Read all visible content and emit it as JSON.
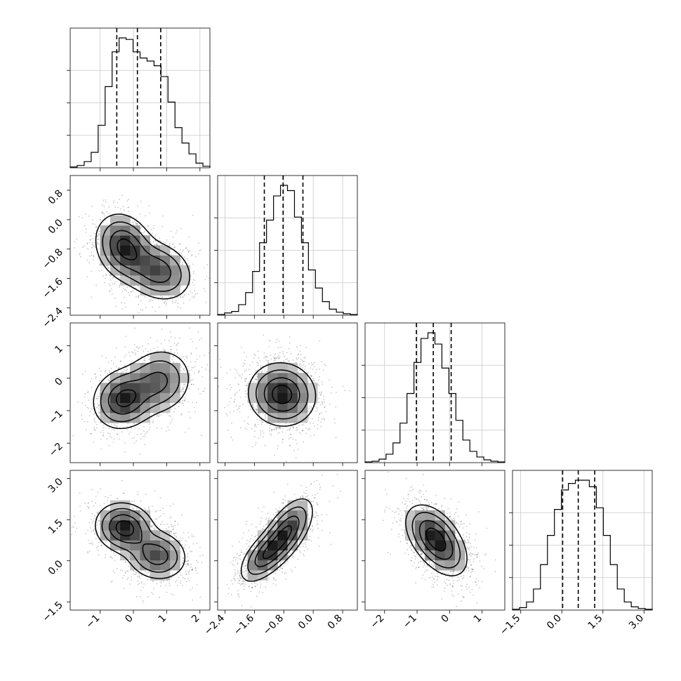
{
  "chart_data": {
    "type": "corner",
    "title": "",
    "parameters": [
      {
        "name": "",
        "range": [
          -1.9,
          2.3
        ],
        "ticks": [
          -1,
          0,
          1,
          2
        ],
        "tick_labels": [
          "−1",
          "0",
          "1",
          "2"
        ]
      },
      {
        "name": "",
        "range": [
          -2.6,
          1.2
        ],
        "ticks": [
          -2.4,
          -1.6,
          -0.8,
          0.0,
          0.8
        ],
        "tick_labels": [
          "−2.4",
          "−1.6",
          "−0.8",
          "0.0",
          "0.8"
        ]
      },
      {
        "name": "",
        "range": [
          -2.6,
          1.7
        ],
        "ticks": [
          -2,
          -1,
          0,
          1
        ],
        "tick_labels": [
          "−2",
          "−1",
          "0",
          "1"
        ]
      },
      {
        "name": "",
        "range": [
          -1.8,
          3.3
        ],
        "ticks": [
          -1.5,
          0.0,
          1.5,
          3.0
        ],
        "tick_labels": [
          "−1.5",
          "0.0",
          "1.5",
          "3.0"
        ]
      }
    ],
    "quantiles": [
      [
        -0.5,
        0.12,
        0.82
      ],
      [
        -1.33,
        -0.82,
        -0.28
      ],
      [
        -1.02,
        -0.5,
        0.05
      ],
      [
        0.03,
        0.6,
        1.2
      ]
    ],
    "histograms": [
      {
        "bins": [
          -1.9,
          2.3
        ],
        "counts": [
          1,
          3,
          8,
          20,
          55,
          105,
          150,
          168,
          166,
          150,
          142,
          138,
          132,
          118,
          85,
          52,
          32,
          18,
          6,
          2
        ]
      },
      {
        "bins": [
          -2.6,
          1.2
        ],
        "counts": [
          1,
          3,
          5,
          14,
          30,
          58,
          96,
          126,
          158,
          172,
          165,
          130,
          96,
          60,
          36,
          18,
          8,
          4,
          2,
          1
        ]
      },
      {
        "bins": [
          -2.6,
          1.7
        ],
        "counts": [
          1,
          2,
          5,
          12,
          28,
          56,
          98,
          142,
          176,
          184,
          168,
          134,
          98,
          60,
          32,
          16,
          8,
          4,
          2,
          1
        ]
      },
      {
        "bins": [
          -1.8,
          3.3
        ],
        "counts": [
          1,
          3,
          10,
          26,
          56,
          92,
          124,
          148,
          156,
          160,
          160,
          152,
          126,
          92,
          56,
          26,
          10,
          4,
          2,
          1
        ]
      }
    ],
    "pairs": [
      {
        "row": 1,
        "col": 0,
        "peaks": [
          {
            "x": -0.27,
            "y": -0.75,
            "w": 1.0
          },
          {
            "x": 0.75,
            "y": -1.4,
            "w": 0.8
          }
        ],
        "sx": [
          0.43,
          0.5
        ],
        "sy": [
          0.45,
          0.4
        ],
        "rho": [
          -0.2,
          -0.2
        ]
      },
      {
        "row": 2,
        "col": 0,
        "peaks": [
          {
            "x": -0.3,
            "y": -0.65,
            "w": 1.0
          },
          {
            "x": 0.75,
            "y": -0.1,
            "w": 0.7
          }
        ],
        "sx": [
          0.45,
          0.5
        ],
        "sy": [
          0.45,
          0.5
        ],
        "rho": [
          0.1,
          0.1
        ]
      },
      {
        "row": 2,
        "col": 1,
        "peaks": [
          {
            "x": -0.85,
            "y": -0.5,
            "w": 1.0
          }
        ],
        "sx": [
          0.45
        ],
        "sy": [
          0.48
        ],
        "rho": [
          -0.05
        ]
      },
      {
        "row": 3,
        "col": 0,
        "peaks": [
          {
            "x": -0.27,
            "y": 1.2,
            "w": 1.0
          },
          {
            "x": 0.7,
            "y": 0.2,
            "w": 0.75
          }
        ],
        "sx": [
          0.43,
          0.45
        ],
        "sy": [
          0.45,
          0.45
        ],
        "rho": [
          -0.1,
          -0.1
        ]
      },
      {
        "row": 3,
        "col": 1,
        "peaks": [
          {
            "x": -1.3,
            "y": 0.2,
            "w": 0.9
          },
          {
            "x": -0.7,
            "y": 1.1,
            "w": 1.0
          }
        ],
        "sx": [
          0.35,
          0.35
        ],
        "sy": [
          0.5,
          0.6
        ],
        "rho": [
          0.6,
          0.6
        ]
      },
      {
        "row": 3,
        "col": 2,
        "peaks": [
          {
            "x": -0.55,
            "y": 1.0,
            "w": 1.0
          },
          {
            "x": -0.2,
            "y": 0.4,
            "w": 0.7
          }
        ],
        "sx": [
          0.42,
          0.42
        ],
        "sy": [
          0.55,
          0.55
        ],
        "rho": [
          -0.4,
          -0.4
        ]
      }
    ],
    "grid": true,
    "contour_levels": 4,
    "xlabel": "",
    "ylabel": ""
  }
}
